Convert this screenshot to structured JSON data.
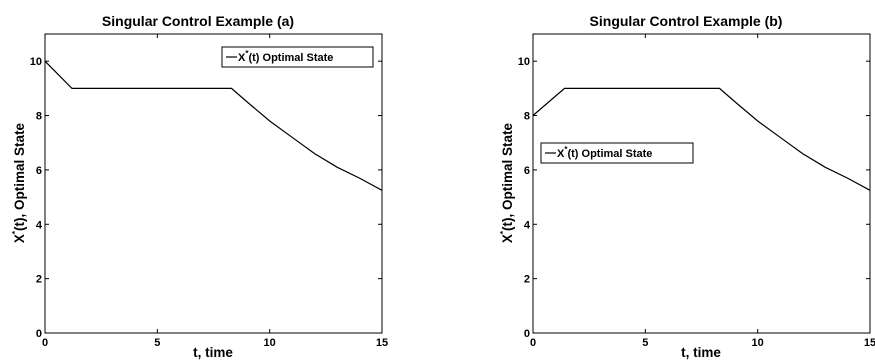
{
  "chart_data": [
    {
      "type": "line",
      "title": "Singular Control Example (a)",
      "xlabel": "t, time",
      "ylabel": "X*(t), Optimal State",
      "xlim": [
        0,
        15
      ],
      "ylim": [
        0,
        11
      ],
      "xticks": [
        0,
        5,
        10,
        15
      ],
      "yticks": [
        0,
        2,
        4,
        6,
        8,
        10
      ],
      "grid": false,
      "legend_position": "top-right",
      "series": [
        {
          "name": "X*(t) Optimal State",
          "x": [
            0,
            1.2,
            8.3,
            9,
            10,
            11,
            12,
            13,
            14,
            15
          ],
          "y": [
            10,
            9,
            9,
            8.5,
            7.8,
            7.2,
            6.6,
            6.1,
            5.7,
            5.25
          ]
        }
      ]
    },
    {
      "type": "line",
      "title": "Singular Control Example (b)",
      "xlabel": "t, time",
      "ylabel": "X*(t), Optimal State",
      "xlim": [
        0,
        15
      ],
      "ylim": [
        0,
        11
      ],
      "xticks": [
        0,
        5,
        10,
        15
      ],
      "yticks": [
        0,
        2,
        4,
        6,
        8,
        10
      ],
      "grid": false,
      "legend_position": "top-left",
      "series": [
        {
          "name": "X*(t) Optimal State",
          "x": [
            0,
            1.4,
            8.3,
            9,
            10,
            11,
            12,
            13,
            14,
            15
          ],
          "y": [
            8,
            9,
            9,
            8.5,
            7.8,
            7.2,
            6.6,
            6.1,
            5.7,
            5.25
          ]
        }
      ]
    }
  ]
}
